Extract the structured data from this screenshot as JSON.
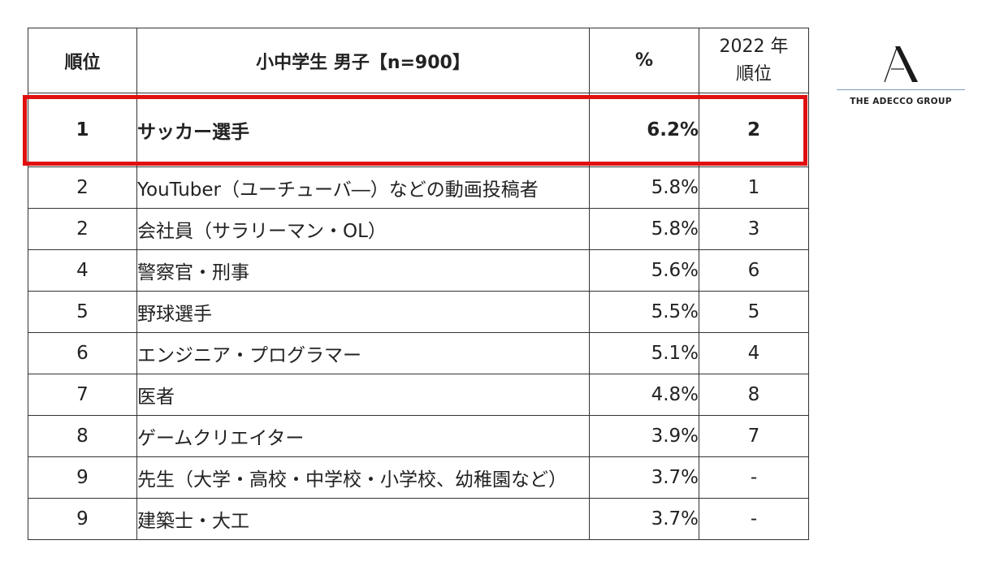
{
  "table": {
    "headers": {
      "rank": "順位",
      "category": "小中学生 男子【n=900】",
      "percent": "%",
      "prev_year_line1": "2022 年",
      "prev_year_line2": "順位"
    },
    "rows": [
      {
        "rank": "1",
        "job": "サッカー選手",
        "percent": "6.2%",
        "prev": "2"
      },
      {
        "rank": "2",
        "job": "YouTuber（ユーチューバ―）などの動画投稿者",
        "percent": "5.8%",
        "prev": "1"
      },
      {
        "rank": "2",
        "job": "会社員（サラリーマン・OL）",
        "percent": "5.8%",
        "prev": "3"
      },
      {
        "rank": "4",
        "job": "警察官・刑事",
        "percent": "5.6%",
        "prev": "6"
      },
      {
        "rank": "5",
        "job": "野球選手",
        "percent": "5.5%",
        "prev": "5"
      },
      {
        "rank": "6",
        "job": "エンジニア・プログラマー",
        "percent": "5.1%",
        "prev": "4"
      },
      {
        "rank": "7",
        "job": "医者",
        "percent": "4.8%",
        "prev": "8"
      },
      {
        "rank": "8",
        "job": "ゲームクリエイター",
        "percent": "3.9%",
        "prev": "7"
      },
      {
        "rank": "9",
        "job": "先生（大学・高校・中学校・小学校、幼稚園など）",
        "percent": "3.7%",
        "prev": "-"
      },
      {
        "rank": "9",
        "job": "建築士・大工",
        "percent": "3.7%",
        "prev": "-"
      }
    ]
  },
  "highlight": {
    "color": "#e01010",
    "row_index": 0
  },
  "logo": {
    "wordmark": "THE ADECCO GROUP",
    "icon": "adecco-a-logo-icon"
  }
}
